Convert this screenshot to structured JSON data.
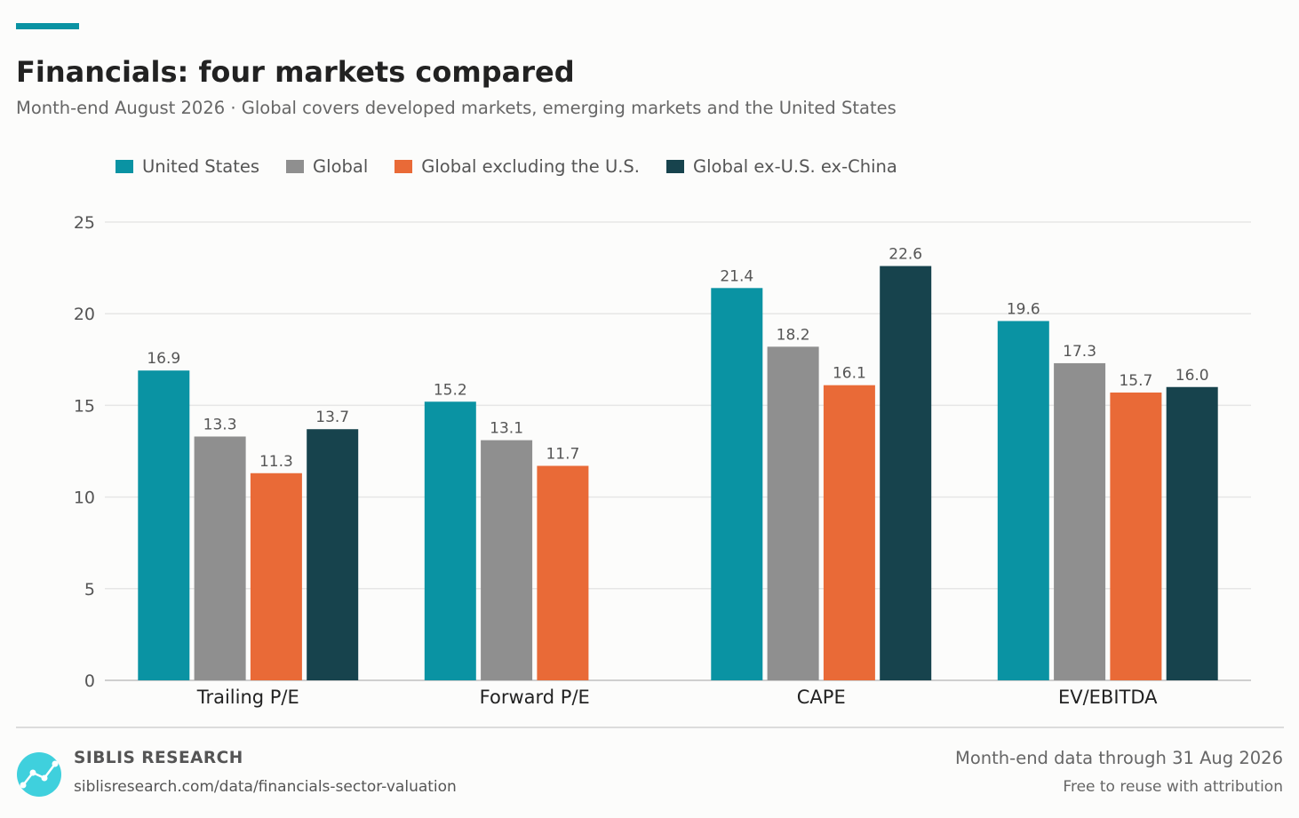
{
  "header": {
    "title": "Financials: four markets compared",
    "subtitle": "Month-end August 2026 · Global covers developed markets, emerging markets and the United States",
    "accent_color": "#0a93a3"
  },
  "legend": [
    {
      "label": "United States",
      "color": "#0a93a3"
    },
    {
      "label": "Global",
      "color": "#8f8f8f"
    },
    {
      "label": "Global excluding the U.S.",
      "color": "#e96a37"
    },
    {
      "label": "Global ex-U.S. ex-China",
      "color": "#17434d"
    }
  ],
  "chart_data": {
    "type": "bar",
    "title": "Financials: four markets compared",
    "categories": [
      "Trailing P/E",
      "Forward P/E",
      "CAPE",
      "EV/EBITDA"
    ],
    "series": [
      {
        "name": "United States",
        "color": "#0a93a3",
        "values": [
          16.9,
          15.2,
          21.4,
          19.6
        ]
      },
      {
        "name": "Global",
        "color": "#8f8f8f",
        "values": [
          13.3,
          13.1,
          18.2,
          17.3
        ]
      },
      {
        "name": "Global excluding the U.S.",
        "color": "#e96a37",
        "values": [
          11.3,
          11.7,
          16.1,
          15.7
        ]
      },
      {
        "name": "Global ex-U.S. ex-China",
        "color": "#17434d",
        "values": [
          13.7,
          null,
          22.6,
          16.0
        ]
      }
    ],
    "ylim": [
      0,
      25
    ],
    "yticks": [
      0,
      5,
      10,
      15,
      20,
      25
    ],
    "grid": true,
    "legend_position": "top-left",
    "xlabel": "",
    "ylabel": ""
  },
  "footer": {
    "brand": "SIBLIS RESEARCH",
    "url": "siblisresearch.com/data/financials-sector-valuation",
    "data_note": "Month-end data through 31 Aug 2026",
    "license_note": "Free to reuse with attribution",
    "logo_icon": "line-chart-logo-icon"
  }
}
